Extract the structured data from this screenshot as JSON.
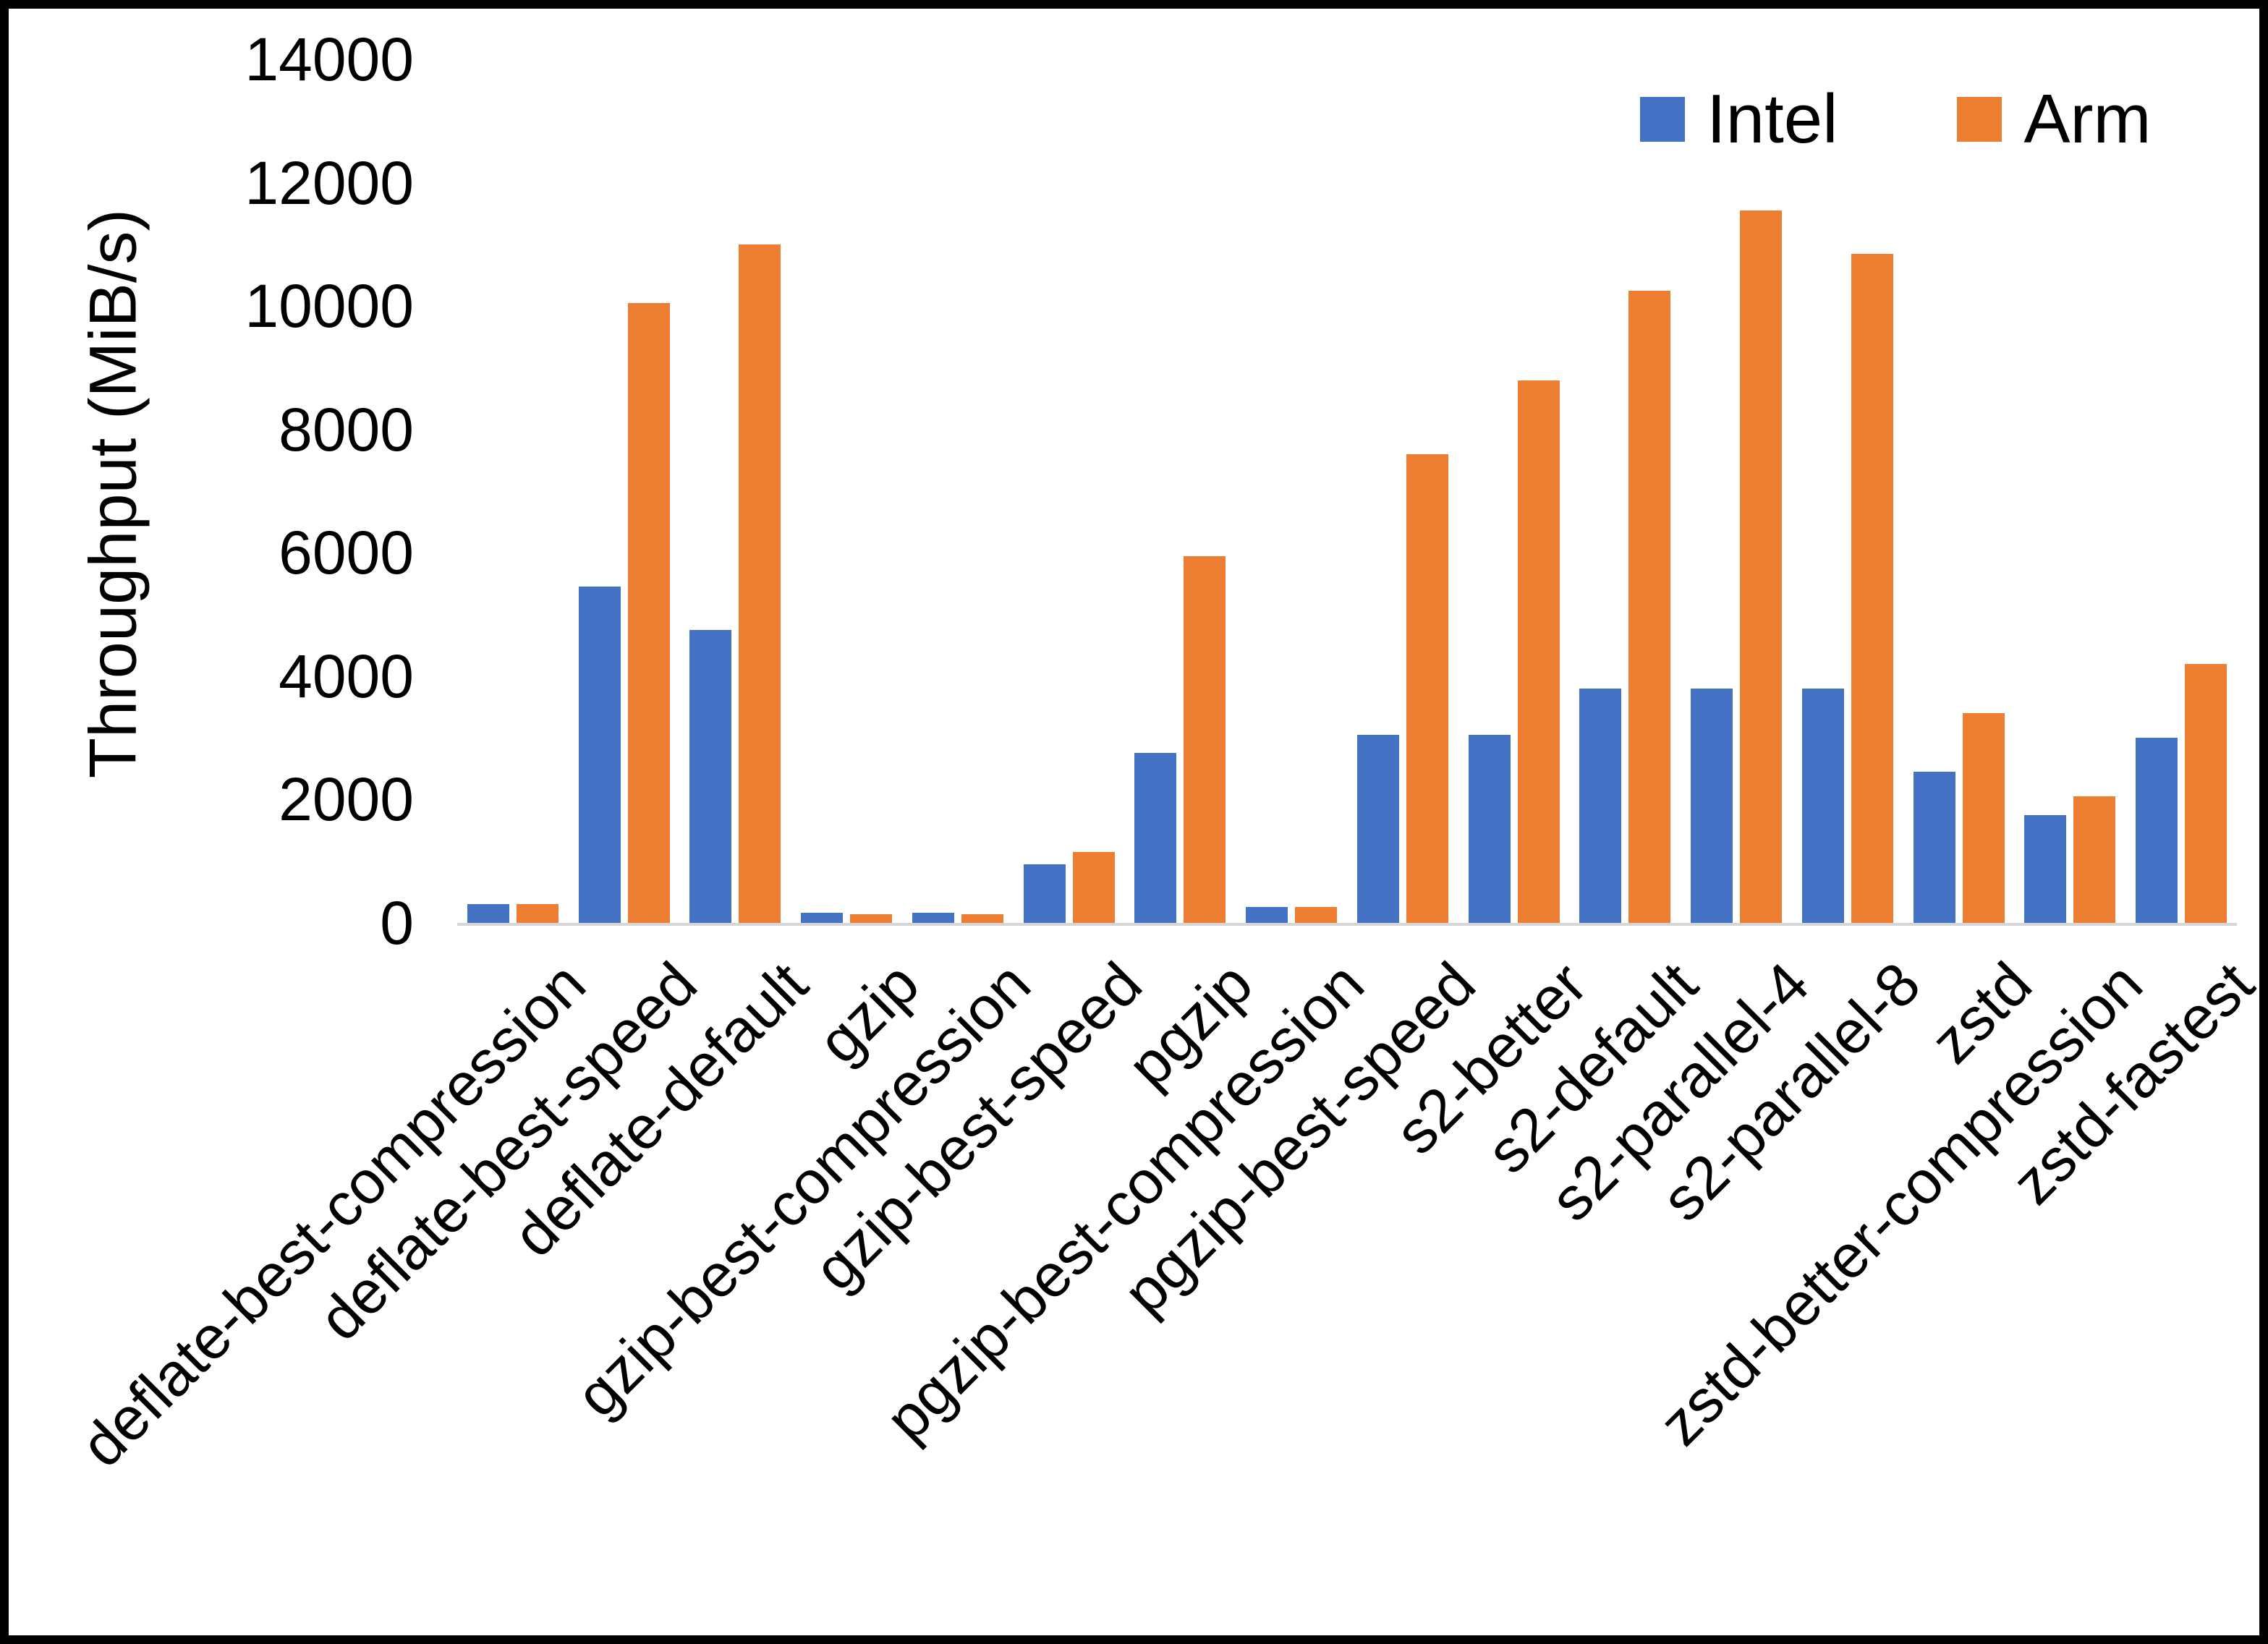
{
  "chart_data": {
    "type": "bar",
    "title": "",
    "xlabel": "",
    "ylabel": "Throughput (MiB/s)",
    "ylim": [
      0,
      14000
    ],
    "ytick_step": 2000,
    "grid": false,
    "legend_position": "top-right",
    "categories": [
      "deflate-best-compression",
      "deflate-best-speed",
      "deflate-default",
      "gzip",
      "gzip-best-compression",
      "gzip-best-speed",
      "pgzip",
      "pgzip-best-compression",
      "pgzip-best-speed",
      "s2-better",
      "s2-default",
      "s2-parallel-4",
      "s2-parallel-8",
      "zstd",
      "zstd-better-compression",
      "zstd-fastest"
    ],
    "series": [
      {
        "name": "Intel",
        "color": "#4472C4",
        "values": [
          300,
          5450,
          4750,
          160,
          160,
          950,
          2750,
          260,
          3050,
          3050,
          3800,
          3800,
          3800,
          2450,
          1750,
          3000
        ]
      },
      {
        "name": "Arm",
        "color": "#ED7D31",
        "values": [
          300,
          10050,
          11000,
          140,
          140,
          1150,
          5950,
          260,
          7600,
          8800,
          10250,
          11550,
          10850,
          3400,
          2050,
          4200
        ]
      }
    ]
  }
}
